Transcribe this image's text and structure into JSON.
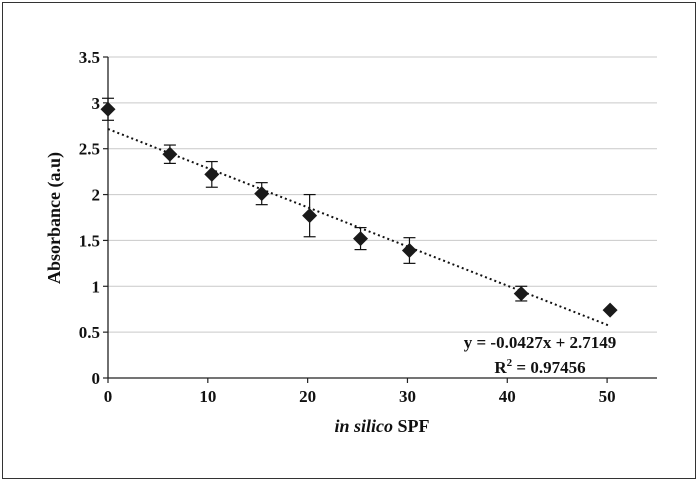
{
  "chart_data": {
    "type": "scatter",
    "title": "",
    "xlabel_italic": "in silico",
    "xlabel_rest": " SPF",
    "ylabel": "Absorbance (a.u)",
    "xlim": [
      0,
      55
    ],
    "ylim": [
      0,
      3.5
    ],
    "x_ticks": [
      0,
      10,
      20,
      30,
      40,
      50
    ],
    "y_ticks": [
      "0",
      "0.5",
      "1",
      "1.5",
      "2",
      "2.5",
      "3",
      "3.5"
    ],
    "grid": "horizontal",
    "marker": "diamond",
    "marker_color": "#1a1a1a",
    "points": [
      {
        "x": 0,
        "y": 2.93,
        "err": 0.12
      },
      {
        "x": 6.2,
        "y": 2.44,
        "err": 0.1
      },
      {
        "x": 10.4,
        "y": 2.22,
        "err": 0.14
      },
      {
        "x": 15.4,
        "y": 2.01,
        "err": 0.12
      },
      {
        "x": 20.2,
        "y": 1.77,
        "err": 0.23
      },
      {
        "x": 25.3,
        "y": 1.52,
        "err": 0.12
      },
      {
        "x": 30.2,
        "y": 1.39,
        "err": 0.14
      },
      {
        "x": 41.4,
        "y": 0.92,
        "err": 0.08
      },
      {
        "x": 50.3,
        "y": 0.74,
        "err": 0
      }
    ],
    "trendline": {
      "type": "linear",
      "style": "dotted",
      "slope": -0.0427,
      "intercept": 2.7149,
      "x_range": [
        0,
        50.3
      ],
      "equation_label": "y = -0.0427x + 2.7149",
      "r2_prefix": "R",
      "r2_superscript": "2",
      "r2_value": " = 0.97456"
    }
  }
}
